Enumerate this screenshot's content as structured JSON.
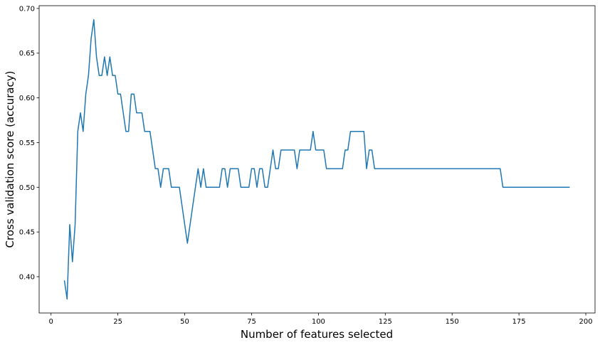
{
  "chart_data": {
    "type": "line",
    "x_label": "Number of features selected",
    "y_label": "Cross validation score (accuracy)",
    "color": "#1f77b4",
    "x": [
      5,
      6,
      7,
      8,
      9,
      10,
      11,
      12,
      13,
      14,
      15,
      16,
      17,
      18,
      19,
      20,
      21,
      22,
      23,
      24,
      25,
      26,
      27,
      28,
      29,
      30,
      31,
      32,
      33,
      34,
      35,
      36,
      37,
      38,
      39,
      40,
      41,
      42,
      43,
      44,
      45,
      46,
      47,
      48,
      49,
      50,
      51,
      52,
      53,
      54,
      55,
      56,
      57,
      58,
      59,
      60,
      61,
      62,
      63,
      64,
      65,
      66,
      67,
      68,
      69,
      70,
      71,
      72,
      73,
      74,
      75,
      76,
      77,
      78,
      79,
      80,
      81,
      82,
      83,
      84,
      85,
      86,
      87,
      88,
      89,
      90,
      91,
      92,
      93,
      94,
      95,
      96,
      97,
      98,
      99,
      100,
      101,
      102,
      103,
      104,
      105,
      106,
      107,
      108,
      109,
      110,
      111,
      112,
      113,
      114,
      115,
      116,
      117,
      118,
      119,
      120,
      121,
      122,
      123,
      124,
      125,
      126,
      127,
      128,
      129,
      130,
      131,
      132,
      133,
      134,
      135,
      136,
      137,
      138,
      139,
      140,
      141,
      142,
      143,
      144,
      145,
      146,
      147,
      148,
      149,
      150,
      151,
      152,
      153,
      154,
      155,
      156,
      157,
      158,
      159,
      160,
      161,
      162,
      163,
      164,
      165,
      166,
      167,
      168,
      169,
      170,
      171,
      172,
      173,
      174,
      175,
      176,
      177,
      178,
      179,
      180,
      181,
      182,
      183,
      184,
      185,
      186,
      187,
      188,
      189,
      190,
      191,
      192,
      193,
      194
    ],
    "values": [
      0.3958,
      0.375,
      0.4583,
      0.4167,
      0.4583,
      0.5625,
      0.5833,
      0.5625,
      0.6042,
      0.625,
      0.6667,
      0.6875,
      0.6458,
      0.625,
      0.625,
      0.6458,
      0.625,
      0.6458,
      0.625,
      0.625,
      0.6042,
      0.6042,
      0.5833,
      0.5625,
      0.5625,
      0.6042,
      0.6042,
      0.5833,
      0.5833,
      0.5833,
      0.5625,
      0.5625,
      0.5625,
      0.5417,
      0.5208,
      0.5208,
      0.5,
      0.5208,
      0.5208,
      0.5208,
      0.5,
      0.5,
      0.5,
      0.5,
      0.4792,
      0.4583,
      0.4375,
      0.4583,
      0.4792,
      0.5,
      0.5208,
      0.5,
      0.5208,
      0.5,
      0.5,
      0.5,
      0.5,
      0.5,
      0.5,
      0.5208,
      0.5208,
      0.5,
      0.5208,
      0.5208,
      0.5208,
      0.5208,
      0.5,
      0.5,
      0.5,
      0.5,
      0.5208,
      0.5208,
      0.5,
      0.5208,
      0.5208,
      0.5,
      0.5,
      0.5208,
      0.5417,
      0.5208,
      0.5208,
      0.5417,
      0.5417,
      0.5417,
      0.5417,
      0.5417,
      0.5417,
      0.5208,
      0.5417,
      0.5417,
      0.5417,
      0.5417,
      0.5417,
      0.5625,
      0.5417,
      0.5417,
      0.5417,
      0.5417,
      0.5208,
      0.5208,
      0.5208,
      0.5208,
      0.5208,
      0.5208,
      0.5208,
      0.5417,
      0.5417,
      0.5625,
      0.5625,
      0.5625,
      0.5625,
      0.5625,
      0.5625,
      0.5208,
      0.5417,
      0.5417,
      0.5208,
      0.5208,
      0.5208,
      0.5208,
      0.5208,
      0.5208,
      0.5208,
      0.5208,
      0.5208,
      0.5208,
      0.5208,
      0.5208,
      0.5208,
      0.5208,
      0.5208,
      0.5208,
      0.5208,
      0.5208,
      0.5208,
      0.5208,
      0.5208,
      0.5208,
      0.5208,
      0.5208,
      0.5208,
      0.5208,
      0.5208,
      0.5208,
      0.5208,
      0.5208,
      0.5208,
      0.5208,
      0.5208,
      0.5208,
      0.5208,
      0.5208,
      0.5208,
      0.5208,
      0.5208,
      0.5208,
      0.5208,
      0.5208,
      0.5208,
      0.5208,
      0.5208,
      0.5208,
      0.5208,
      0.5208,
      0.5,
      0.5,
      0.5,
      0.5,
      0.5,
      0.5,
      0.5,
      0.5,
      0.5,
      0.5,
      0.5,
      0.5,
      0.5,
      0.5,
      0.5,
      0.5,
      0.5,
      0.5,
      0.5,
      0.5,
      0.5,
      0.5,
      0.5,
      0.5,
      0.5,
      0.5
    ],
    "xlim": [
      -4.45,
      203.45
    ],
    "ylim": [
      0.3594,
      0.7031
    ],
    "xticks": [
      0,
      25,
      50,
      75,
      100,
      125,
      150,
      175,
      200
    ],
    "yticks": [
      {
        "value": 0.4,
        "label": "0.40"
      },
      {
        "value": 0.45,
        "label": "0.45"
      },
      {
        "value": 0.5,
        "label": "0.50"
      },
      {
        "value": 0.55,
        "label": "0.55"
      },
      {
        "value": 0.6,
        "label": "0.60"
      },
      {
        "value": 0.65,
        "label": "0.65"
      },
      {
        "value": 0.7,
        "label": "0.70"
      }
    ]
  }
}
